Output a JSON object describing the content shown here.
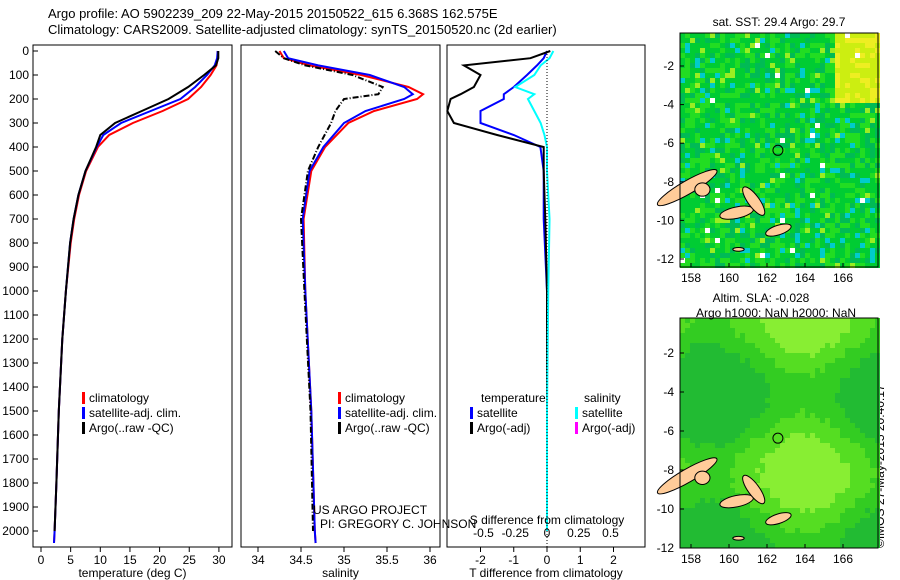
{
  "title_line1": "Argo profile: AO 5902239_209 22-May-2015 20150522_615 6.368S 162.575E",
  "title_line2": "Climatology: CARS2009. Satellite-adjusted climatology: synTS_20150520.nc (2d earlier)",
  "side_credit": "©IMOS 27-May-2015 20:40:17",
  "colors": {
    "clim": "#ff0000",
    "sat": "#0000ff",
    "argo": "#000000",
    "sat_s": "#00ffff",
    "argo_s": "#ff00ff"
  },
  "chart_data": [
    {
      "type": "line",
      "name": "temperature",
      "xlabel": "temperature (deg C)",
      "xlim": [
        -1,
        31
      ],
      "ylim": [
        2050,
        0
      ],
      "xticks": [
        0,
        5,
        10,
        15,
        20,
        25,
        30
      ],
      "yticks": [
        0,
        100,
        200,
        300,
        400,
        500,
        600,
        700,
        800,
        900,
        1000,
        1100,
        1200,
        1300,
        1400,
        1500,
        1600,
        1700,
        1800,
        1900,
        2000
      ],
      "depth": [
        0,
        30,
        60,
        100,
        150,
        200,
        250,
        300,
        350,
        400,
        500,
        600,
        700,
        800,
        1000,
        1200,
        1500,
        1800,
        2000,
        2050
      ],
      "series": [
        {
          "name": "climatology",
          "values": [
            29.8,
            29.8,
            29.6,
            28.6,
            27,
            24.8,
            20.5,
            15.5,
            11.5,
            9.6,
            7.6,
            6.4,
            5.6,
            5,
            4.2,
            3.6,
            3,
            2.6,
            2.3,
            2.2
          ]
        },
        {
          "name": "satellite-adj. clim.",
          "values": [
            29.8,
            29.7,
            29.3,
            28,
            26,
            23.5,
            18.5,
            13.5,
            10.5,
            9.4,
            7.5,
            6.3,
            5.5,
            4.9,
            4.2,
            3.6,
            3,
            2.6,
            2.3,
            2.2
          ]
        },
        {
          "name": "Argo(..raw -QC)",
          "values": [
            29.9,
            29.9,
            29.5,
            27.5,
            24.8,
            21.5,
            17,
            12.5,
            10,
            9.3,
            7.5,
            6.3,
            5.5,
            4.9,
            4.2,
            3.6,
            3,
            2.6,
            2.3,
            null
          ]
        }
      ],
      "legend": [
        "climatology",
        "satellite-adj. clim.",
        "Argo(..raw -QC)"
      ]
    },
    {
      "type": "line",
      "name": "salinity",
      "xlabel": "salinity",
      "xlim": [
        33.8,
        36.1
      ],
      "ylim": [
        2050,
        0
      ],
      "xticks": [
        34,
        34.5,
        35,
        35.5,
        36
      ],
      "depth": [
        0,
        30,
        60,
        100,
        150,
        180,
        200,
        250,
        300,
        400,
        500,
        700,
        1000,
        1500,
        2000,
        2050
      ],
      "series": [
        {
          "name": "climatology",
          "values": [
            34.25,
            34.3,
            34.6,
            35.2,
            35.75,
            35.92,
            35.85,
            35.35,
            35.05,
            34.78,
            34.62,
            34.53,
            34.55,
            34.62,
            34.66,
            34.67
          ]
        },
        {
          "name": "satellite-adj. clim.",
          "values": [
            34.3,
            34.35,
            34.7,
            35.3,
            35.7,
            35.8,
            35.7,
            35.25,
            35,
            34.76,
            34.6,
            34.52,
            34.55,
            34.62,
            34.66,
            34.67
          ]
        },
        {
          "name": "Argo(..raw -QC)",
          "values": [
            34.2,
            34.3,
            34.55,
            35.1,
            35.45,
            35.4,
            35.0,
            34.9,
            34.85,
            34.7,
            34.58,
            34.5,
            34.54,
            34.61,
            34.64,
            null
          ]
        }
      ],
      "legend": [
        "climatology",
        "satellite-adj. clim.",
        "Argo(..raw -QC)"
      ],
      "annotation": [
        "US ARGO PROJECT",
        "PI: GREGORY C. JOHNSON"
      ]
    },
    {
      "type": "line",
      "name": "difference",
      "xlabel": "T difference from climatology",
      "x2label": "S difference from climatology",
      "xlim": [
        -3,
        3
      ],
      "xticks": [
        -2,
        -1,
        0,
        1,
        2
      ],
      "x2ticks": [
        -0.5,
        -0.25,
        0,
        0.25,
        0.5
      ],
      "depth": [
        0,
        30,
        60,
        100,
        150,
        180,
        200,
        250,
        300,
        350,
        400,
        500,
        700,
        1000,
        1500,
        2000
      ],
      "series": [
        {
          "name": "temperature satellite",
          "values": [
            0,
            -0.1,
            -0.3,
            -0.6,
            -1,
            -1.3,
            -1.3,
            -2,
            -2,
            -1,
            -0.2,
            -0.1,
            -0.1,
            0,
            0,
            0
          ]
        },
        {
          "name": "temperature Argo(-adj)",
          "values": [
            0.1,
            -0.5,
            -2.5,
            -2,
            -2.2,
            -2.6,
            -2.9,
            -3,
            -2.8,
            -1.5,
            -0.1,
            -0.1,
            -0.05,
            0,
            0,
            0
          ]
        },
        {
          "name": "salinity satellite",
          "values": [
            0.05,
            0.02,
            -0.05,
            -0.1,
            -0.25,
            -0.1,
            -0.15,
            -0.1,
            -0.05,
            -0.02,
            0,
            0,
            0.02,
            0.01,
            0,
            0
          ]
        }
      ],
      "legend": {
        "temperature_title": "temperature",
        "salinity_title": "salinity",
        "items": [
          "satellite",
          "Argo(-adj)",
          "satellite",
          "Argo(-adj)"
        ]
      }
    },
    {
      "type": "heatmap",
      "name": "sst-map",
      "title": "sat. SST: 29.4 Argo: 29.7",
      "xticks": [
        158,
        160,
        162,
        164,
        166
      ],
      "yticks": [
        -2,
        -4,
        -6,
        -8,
        -10,
        -12
      ],
      "argo_position": [
        162.575,
        -6.368
      ]
    },
    {
      "type": "heatmap",
      "name": "sla-map",
      "title_line1": "Altim. SLA: -0.028",
      "title_line2": "Argo h1000: NaN h2000: NaN",
      "xticks": [
        158,
        160,
        162,
        164,
        166
      ],
      "yticks": [
        -2,
        -4,
        -6,
        -8,
        -10,
        -12
      ],
      "argo_position": [
        162.575,
        -6.368
      ]
    }
  ]
}
